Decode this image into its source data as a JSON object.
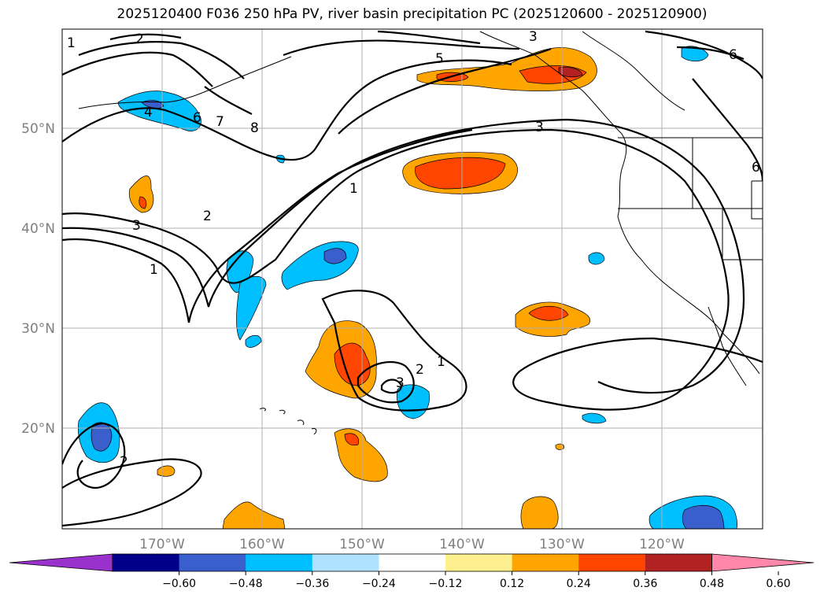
{
  "title": "2025120400 F036 250 hPa PV, river basin precipitation PC (2025120600 - 2025120900)",
  "latitude_labels": [
    "50°N",
    "40°N",
    "30°N",
    "20°N"
  ],
  "longitude_labels": [
    "170°W",
    "160°W",
    "150°W",
    "140°W",
    "130°W",
    "120°W"
  ],
  "pv_contour_labels": [
    "1",
    "2",
    "3",
    "4",
    "5",
    "6",
    "7",
    "8",
    "1",
    "2",
    "3",
    "1",
    "3",
    "2",
    "1",
    "2",
    "3",
    "6",
    "6"
  ],
  "colorbar": {
    "tick_labels": [
      "−0.60",
      "−0.48",
      "−0.36",
      "−0.24",
      "−0.12",
      "0.12",
      "0.24",
      "0.36",
      "0.48",
      "0.60"
    ],
    "colors": [
      "#9932cc",
      "#00008b",
      "#3a5fcd",
      "#00bfff",
      "#b0e2ff",
      "#ffffff",
      "#fff08f",
      "#ffa500",
      "#ff4500",
      "#b22222",
      "#ff88aa"
    ]
  },
  "chart_data": {
    "type": "map",
    "fields": [
      "250 hPa PV",
      "river basin precipitation PC"
    ],
    "lat_range": [
      "10°N",
      "60°N"
    ],
    "lon_range": [
      "180°W",
      "110°W"
    ]
  }
}
